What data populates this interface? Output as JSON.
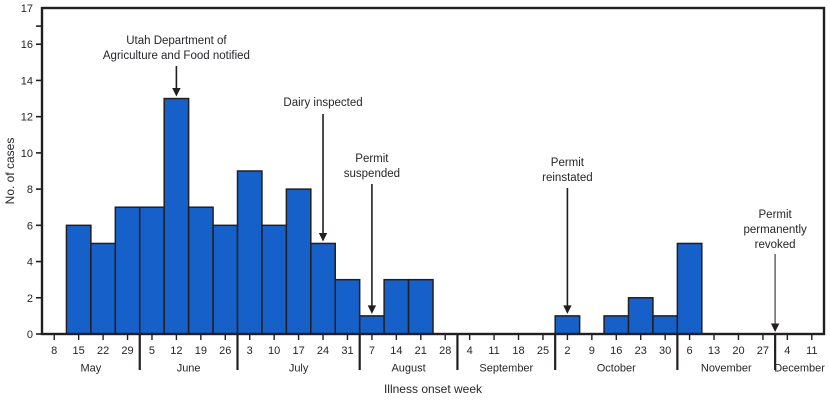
{
  "chart_data": {
    "type": "bar",
    "title": "",
    "xlabel": "Illness onset week",
    "ylabel": "No. of cases",
    "ylim": [
      0,
      17
    ],
    "ytick_labels": [
      0,
      2,
      4,
      6,
      8,
      10,
      12,
      14,
      16,
      17
    ],
    "grid": false,
    "legend": "none",
    "bar_color": "#1660c9",
    "bar_edge_color": "#231f20",
    "axis_color": "#231f20",
    "text_color": "#26262b",
    "months": [
      {
        "name": "May",
        "weeks": [
          "8",
          "15",
          "22",
          "29"
        ],
        "values": [
          0,
          6,
          5,
          7
        ]
      },
      {
        "name": "June",
        "weeks": [
          "5",
          "12",
          "19",
          "26"
        ],
        "values": [
          7,
          13,
          7,
          6
        ]
      },
      {
        "name": "July",
        "weeks": [
          "3",
          "10",
          "17",
          "24",
          "31"
        ],
        "values": [
          9,
          6,
          8,
          5,
          3
        ]
      },
      {
        "name": "August",
        "weeks": [
          "7",
          "14",
          "21",
          "28"
        ],
        "values": [
          1,
          3,
          3,
          0
        ]
      },
      {
        "name": "September",
        "weeks": [
          "4",
          "11",
          "18",
          "25"
        ],
        "values": [
          0,
          0,
          0,
          0
        ]
      },
      {
        "name": "October",
        "weeks": [
          "2",
          "9",
          "16",
          "23",
          "30"
        ],
        "values": [
          1,
          0,
          1,
          2,
          1
        ]
      },
      {
        "name": "November",
        "weeks": [
          "6",
          "13",
          "20",
          "27"
        ],
        "values": [
          5,
          0,
          0,
          0
        ]
      },
      {
        "name": "December",
        "weeks": [
          "4",
          "11"
        ],
        "values": [
          0,
          0
        ]
      }
    ],
    "annotations": [
      {
        "lines": [
          "Utah Department of",
          "Agriculture and Food notified"
        ],
        "month": "June",
        "week": "12",
        "points_to_value": 13
      },
      {
        "lines": [
          "Dairy inspected"
        ],
        "month": "July",
        "week": "24",
        "points_to_value": 5
      },
      {
        "lines": [
          "Permit",
          "suspended"
        ],
        "month": "August",
        "week": "7",
        "points_to_value": 1
      },
      {
        "lines": [
          "Permit",
          "reinstated"
        ],
        "month": "October",
        "week": "2",
        "points_to_value": 1
      },
      {
        "lines": [
          "Permit",
          "permanently",
          "revoked"
        ],
        "boundary_before_month": "December",
        "points_to_value": 0
      }
    ]
  }
}
